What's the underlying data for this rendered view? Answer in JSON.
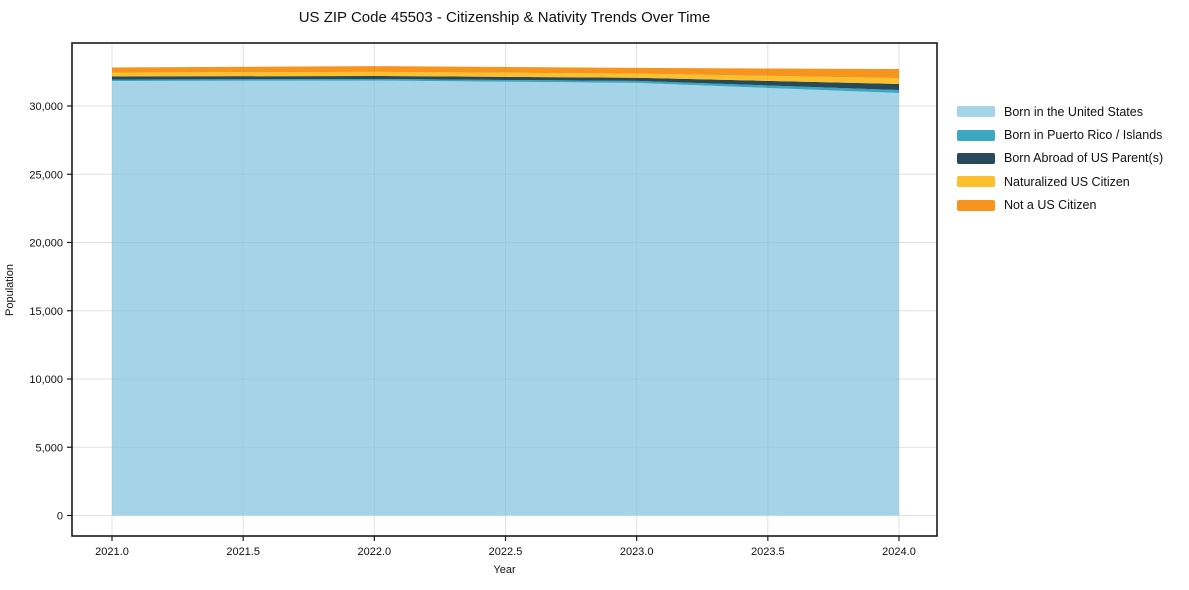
{
  "title": "US ZIP Code 45503 - Citizenship & Nativity Trends Over Time",
  "chart_data": {
    "type": "area",
    "stacked": true,
    "title": "US ZIP Code 45503 - Citizenship & Nativity Trends Over Time",
    "xlabel": "Year",
    "ylabel": "Population",
    "x": [
      2021,
      2022,
      2023,
      2024
    ],
    "series": [
      {
        "name": "Born in the United States",
        "color": "#a5d3e8",
        "values": [
          31830,
          31860,
          31690,
          30950
        ]
      },
      {
        "name": "Born in Puerto Rico / Islands",
        "color": "#3ba7c0",
        "values": [
          110,
          120,
          150,
          220
        ]
      },
      {
        "name": "Born Abroad of US Parent(s)",
        "color": "#27495a",
        "values": [
          225,
          220,
          230,
          440
        ]
      },
      {
        "name": "Naturalized US Citizen",
        "color": "#fbc02c",
        "values": [
          290,
          300,
          300,
          440
        ]
      },
      {
        "name": "Not a US Citizen",
        "color": "#f7941e",
        "values": [
          370,
          420,
          420,
          660
        ]
      }
    ],
    "xticks": [
      2021.0,
      2021.5,
      2022.0,
      2022.5,
      2023.0,
      2023.5,
      2024.0
    ],
    "xtick_labels": [
      "2021.0",
      "2021.5",
      "2022.0",
      "2022.5",
      "2023.0",
      "2023.5",
      "2024.0"
    ],
    "yticks": [
      0,
      5000,
      10000,
      15000,
      20000,
      25000,
      30000
    ],
    "ytick_labels": [
      "0",
      "5,000",
      "10,000",
      "15,000",
      "20,000",
      "25,000",
      "30,000"
    ],
    "xlim": [
      2020.85,
      2024.15
    ],
    "ylim": [
      -1500,
      34600
    ],
    "grid": true,
    "legend_position": "outside-right",
    "colors": {
      "grid": "#e9e9e9",
      "frame": "#1a1a1a",
      "background": "#ffffff",
      "text": "#111111"
    }
  }
}
